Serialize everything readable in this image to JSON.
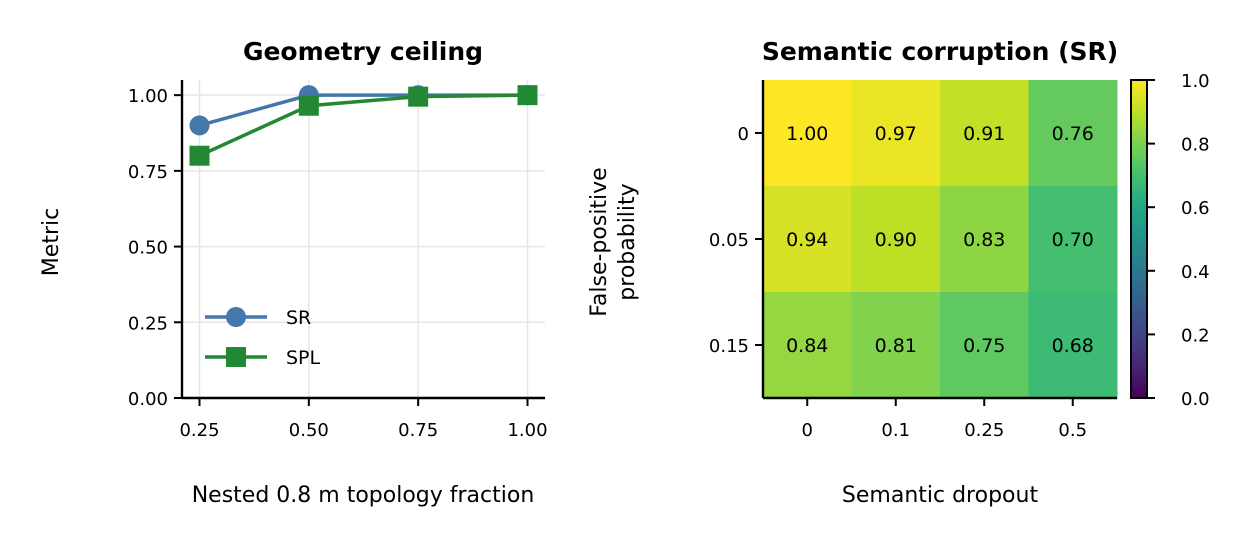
{
  "chart_data": [
    {
      "type": "line",
      "title": "Geometry ceiling",
      "xlabel": "Nested 0.8 m topology fraction",
      "ylabel": "Metric",
      "x": [
        0.25,
        0.5,
        0.75,
        1.0
      ],
      "x_ticks": [
        "0.25",
        "0.50",
        "0.75",
        "1.00"
      ],
      "y_ticks": [
        "0.00",
        "0.25",
        "0.50",
        "0.75",
        "1.00"
      ],
      "xlim": [
        0.21,
        1.04
      ],
      "ylim": [
        0,
        1.05
      ],
      "grid": true,
      "legend_position": "lower-left",
      "series": [
        {
          "name": "SR",
          "values": [
            0.9,
            1.0,
            1.0,
            1.0
          ],
          "color": "#4477aa",
          "marker": "circle"
        },
        {
          "name": "SPL",
          "values": [
            0.8,
            0.965,
            0.995,
            1.0
          ],
          "color": "#228833",
          "marker": "square"
        }
      ]
    },
    {
      "type": "heatmap",
      "title": "Semantic corruption (SR)",
      "xlabel": "Semantic dropout",
      "ylabel_lines": [
        "False-positive",
        "probability"
      ],
      "x_categories": [
        "0",
        "0.1",
        "0.25",
        "0.5"
      ],
      "y_categories": [
        "0",
        "0.05",
        "0.15"
      ],
      "values": [
        [
          1.0,
          0.97,
          0.91,
          0.76
        ],
        [
          0.94,
          0.9,
          0.83,
          0.7
        ],
        [
          0.84,
          0.81,
          0.75,
          0.68
        ]
      ],
      "cell_labels": [
        [
          "1.00",
          "0.97",
          "0.91",
          "0.76"
        ],
        [
          "0.94",
          "0.90",
          "0.83",
          "0.70"
        ],
        [
          "0.84",
          "0.81",
          "0.75",
          "0.68"
        ]
      ],
      "colormap": "viridis",
      "colorbar_range": [
        0,
        1
      ],
      "colorbar_ticks": [
        "0.0",
        "0.2",
        "0.4",
        "0.6",
        "0.8",
        "1.0"
      ]
    }
  ]
}
